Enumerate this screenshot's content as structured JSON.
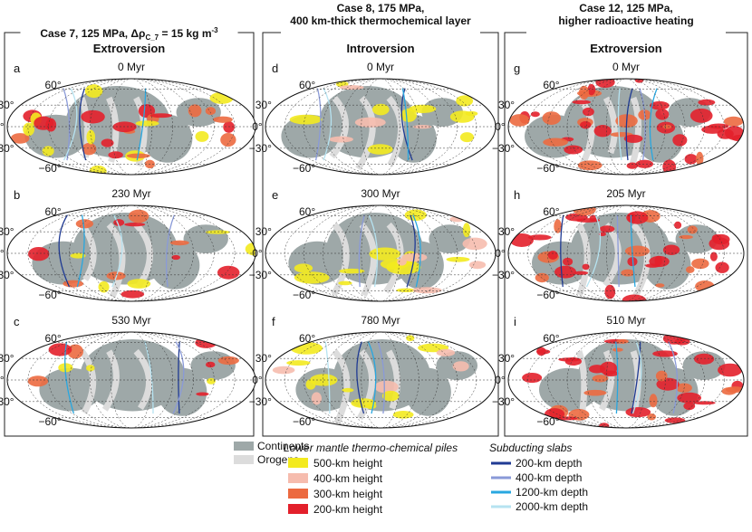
{
  "columns": [
    {
      "title_parts": [
        "Case 7, 125 MPa, Δρ",
        "C_7",
        " = 15 kg m",
        "-3"
      ],
      "subtitle": "Extroversion",
      "panels": [
        {
          "letter": "a",
          "time": "0 Myr"
        },
        {
          "letter": "b",
          "time": "230 Myr"
        },
        {
          "letter": "c",
          "time": "530 Myr"
        }
      ]
    },
    {
      "title_lines": [
        "Case 8, 175 MPa,",
        "400 km-thick thermochemical layer"
      ],
      "subtitle": "Introversion",
      "panels": [
        {
          "letter": "d",
          "time": "0 Myr"
        },
        {
          "letter": "e",
          "time": "300 Myr"
        },
        {
          "letter": "f",
          "time": "780 Myr"
        }
      ]
    },
    {
      "title_lines": [
        "Case 12, 125 MPa,",
        "higher radioactive heating"
      ],
      "subtitle": "Extroversion",
      "panels": [
        {
          "letter": "g",
          "time": "0 Myr"
        },
        {
          "letter": "h",
          "time": "205 Myr"
        },
        {
          "letter": "i",
          "time": "510 Myr"
        }
      ]
    }
  ],
  "lat_labels": [
    "60°",
    "30°",
    "0°",
    "−30°",
    "−60°"
  ],
  "legend": {
    "surface": [
      {
        "label": "Continents",
        "color": "#9ea8a8"
      },
      {
        "label": "Orogens",
        "color": "#dcdcdc"
      }
    ],
    "piles": {
      "title": "Lower mantle thermo-chemical piles",
      "items": [
        {
          "label": "500-km height",
          "color": "#f3ea1f"
        },
        {
          "label": "400-km height",
          "color": "#f6bcae"
        },
        {
          "label": "300-km height",
          "color": "#ec6a40"
        },
        {
          "label": "200-km height",
          "color": "#e3202b"
        }
      ]
    },
    "slabs": {
      "title": "Subducting slabs",
      "items": [
        {
          "label": "200-km depth",
          "color": "#1f3a93"
        },
        {
          "label": "400-km depth",
          "color": "#8a9ad8"
        },
        {
          "label": "1200-km depth",
          "color": "#28a7e0"
        },
        {
          "label": "2000-km depth",
          "color": "#b6e3f1"
        }
      ]
    }
  }
}
